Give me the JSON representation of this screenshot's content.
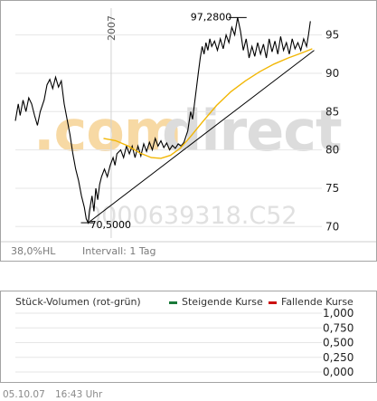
{
  "chart_data": [
    {
      "type": "line",
      "series": [
        {
          "values": [
            {
              "x": 0,
              "y": 83.8
            },
            {
              "x": 3,
              "y": 86.0
            },
            {
              "x": 5,
              "y": 84.5
            },
            {
              "x": 8,
              "y": 86.5
            },
            {
              "x": 11,
              "y": 85.0
            },
            {
              "x": 14,
              "y": 86.8
            },
            {
              "x": 17,
              "y": 86.0
            },
            {
              "x": 20,
              "y": 84.5
            },
            {
              "x": 23,
              "y": 83.2
            },
            {
              "x": 26,
              "y": 85.0
            },
            {
              "x": 30,
              "y": 86.5
            },
            {
              "x": 33,
              "y": 88.5
            },
            {
              "x": 36,
              "y": 89.2
            },
            {
              "x": 39,
              "y": 88.0
            },
            {
              "x": 42,
              "y": 89.5
            },
            {
              "x": 45,
              "y": 88.2
            },
            {
              "x": 48,
              "y": 89.0
            },
            {
              "x": 51,
              "y": 86.0
            },
            {
              "x": 54,
              "y": 84.0
            },
            {
              "x": 57,
              "y": 82.0
            },
            {
              "x": 60,
              "y": 79.5
            },
            {
              "x": 63,
              "y": 77.5
            },
            {
              "x": 66,
              "y": 76.0
            },
            {
              "x": 69,
              "y": 74.0
            },
            {
              "x": 72,
              "y": 72.5
            },
            {
              "x": 74,
              "y": 71.0
            },
            {
              "x": 76,
              "y": 70.5
            },
            {
              "x": 78,
              "y": 72.5
            },
            {
              "x": 80,
              "y": 74.0
            },
            {
              "x": 82,
              "y": 72.0
            },
            {
              "x": 84,
              "y": 75.0
            },
            {
              "x": 86,
              "y": 73.5
            },
            {
              "x": 88,
              "y": 75.5
            },
            {
              "x": 90,
              "y": 76.5
            },
            {
              "x": 93,
              "y": 77.5
            },
            {
              "x": 96,
              "y": 76.5
            },
            {
              "x": 99,
              "y": 78.0
            },
            {
              "x": 102,
              "y": 79.0
            },
            {
              "x": 104,
              "y": 78.0
            },
            {
              "x": 106,
              "y": 79.5
            },
            {
              "x": 110,
              "y": 80.0
            },
            {
              "x": 113,
              "y": 79.0
            },
            {
              "x": 116,
              "y": 80.5
            },
            {
              "x": 119,
              "y": 79.5
            },
            {
              "x": 122,
              "y": 80.5
            },
            {
              "x": 125,
              "y": 79.0
            },
            {
              "x": 128,
              "y": 80.5
            },
            {
              "x": 131,
              "y": 79.2
            },
            {
              "x": 134,
              "y": 80.8
            },
            {
              "x": 137,
              "y": 79.8
            },
            {
              "x": 140,
              "y": 81.0
            },
            {
              "x": 143,
              "y": 80.0
            },
            {
              "x": 146,
              "y": 81.5
            },
            {
              "x": 149,
              "y": 80.5
            },
            {
              "x": 152,
              "y": 81.2
            },
            {
              "x": 155,
              "y": 80.3
            },
            {
              "x": 158,
              "y": 80.9
            },
            {
              "x": 161,
              "y": 80.0
            },
            {
              "x": 164,
              "y": 80.6
            },
            {
              "x": 167,
              "y": 80.2
            },
            {
              "x": 170,
              "y": 80.8
            },
            {
              "x": 173,
              "y": 80.5
            },
            {
              "x": 176,
              "y": 81.0
            },
            {
              "x": 180,
              "y": 82.5
            },
            {
              "x": 183,
              "y": 85.0
            },
            {
              "x": 185,
              "y": 84.0
            },
            {
              "x": 187,
              "y": 86.0
            },
            {
              "x": 189,
              "y": 88.0
            },
            {
              "x": 191,
              "y": 90.0
            },
            {
              "x": 193,
              "y": 92.0
            },
            {
              "x": 195,
              "y": 93.5
            },
            {
              "x": 197,
              "y": 92.5
            },
            {
              "x": 199,
              "y": 94.0
            },
            {
              "x": 201,
              "y": 93.0
            },
            {
              "x": 203,
              "y": 94.5
            },
            {
              "x": 205,
              "y": 93.5
            },
            {
              "x": 208,
              "y": 94.2
            },
            {
              "x": 211,
              "y": 93.0
            },
            {
              "x": 214,
              "y": 94.5
            },
            {
              "x": 217,
              "y": 93.2
            },
            {
              "x": 220,
              "y": 95.0
            },
            {
              "x": 223,
              "y": 94.0
            },
            {
              "x": 226,
              "y": 96.0
            },
            {
              "x": 229,
              "y": 95.0
            },
            {
              "x": 232,
              "y": 97.28
            },
            {
              "x": 235,
              "y": 95.5
            },
            {
              "x": 238,
              "y": 93.0
            },
            {
              "x": 241,
              "y": 94.5
            },
            {
              "x": 244,
              "y": 92.0
            },
            {
              "x": 247,
              "y": 93.5
            },
            {
              "x": 250,
              "y": 92.2
            },
            {
              "x": 253,
              "y": 94.0
            },
            {
              "x": 256,
              "y": 92.5
            },
            {
              "x": 259,
              "y": 93.8
            },
            {
              "x": 262,
              "y": 92.0
            },
            {
              "x": 265,
              "y": 94.5
            },
            {
              "x": 268,
              "y": 92.8
            },
            {
              "x": 271,
              "y": 94.2
            },
            {
              "x": 274,
              "y": 92.5
            },
            {
              "x": 277,
              "y": 94.8
            },
            {
              "x": 280,
              "y": 93.0
            },
            {
              "x": 283,
              "y": 94.0
            },
            {
              "x": 286,
              "y": 92.5
            },
            {
              "x": 289,
              "y": 94.5
            },
            {
              "x": 292,
              "y": 93.2
            },
            {
              "x": 295,
              "y": 94.0
            },
            {
              "x": 298,
              "y": 93.0
            },
            {
              "x": 301,
              "y": 94.5
            },
            {
              "x": 304,
              "y": 93.5
            },
            {
              "x": 306,
              "y": 95.0
            },
            {
              "x": 308,
              "y": 96.8
            }
          ]
        },
        {
          "values": [
            {
              "x": 76,
              "y": 70.5
            },
            {
              "x": 312,
              "y": 93.0
            }
          ]
        },
        {
          "values": [
            {
              "x": 92,
              "y": 81.5
            },
            {
              "x": 105,
              "y": 81.2
            },
            {
              "x": 118,
              "y": 80.5
            },
            {
              "x": 130,
              "y": 79.6
            },
            {
              "x": 142,
              "y": 79.0
            },
            {
              "x": 152,
              "y": 78.9
            },
            {
              "x": 162,
              "y": 79.3
            },
            {
              "x": 172,
              "y": 80.2
            },
            {
              "x": 182,
              "y": 81.6
            },
            {
              "x": 195,
              "y": 83.6
            },
            {
              "x": 210,
              "y": 85.8
            },
            {
              "x": 225,
              "y": 87.6
            },
            {
              "x": 240,
              "y": 89.0
            },
            {
              "x": 255,
              "y": 90.2
            },
            {
              "x": 270,
              "y": 91.2
            },
            {
              "x": 285,
              "y": 92.0
            },
            {
              "x": 300,
              "y": 92.7
            },
            {
              "x": 310,
              "y": 93.2
            }
          ]
        }
      ],
      "ylim": [
        68.5,
        98.5
      ],
      "xlim": [
        0,
        320
      ],
      "ytick_values": [
        70,
        75,
        80,
        85,
        90,
        95
      ],
      "ytick_labels": [
        "70",
        "75",
        "80",
        "85",
        "90",
        "95"
      ],
      "x_marker": {
        "x": 100,
        "label": "2007"
      },
      "annotations": [
        {
          "x": 232,
          "y": 97.28,
          "label": "97,2800"
        },
        {
          "x": 76,
          "y": 70.5,
          "label": "70,5000"
        }
      ],
      "grid": true,
      "colors": {
        "price": "#000000",
        "trend": "#000000",
        "average": "#f2b705",
        "grid": "#e6e6e6"
      },
      "watermark": {
        "brand": "comdirect",
        "code": "0000639318.C52"
      },
      "info": {
        "scale": "38,0%HL",
        "interval": "Intervall: 1 Tag"
      }
    },
    {
      "type": "bar",
      "title": "Stück-Volumen (rot-grün)",
      "legend": [
        {
          "name": "Steigende Kurse",
          "color": "#1a7a3a"
        },
        {
          "name": "Fallende Kurse",
          "color": "#cc1111"
        }
      ],
      "ylim": [
        0,
        1
      ],
      "ytick_values": [
        0,
        0.25,
        0.5,
        0.75,
        1
      ],
      "ytick_labels": [
        "0,000",
        "0,250",
        "0,500",
        "0,750",
        "1,000"
      ],
      "values": [],
      "grid": true
    }
  ],
  "footer": {
    "date": "05.10.07",
    "time": "16:43 Uhr"
  }
}
